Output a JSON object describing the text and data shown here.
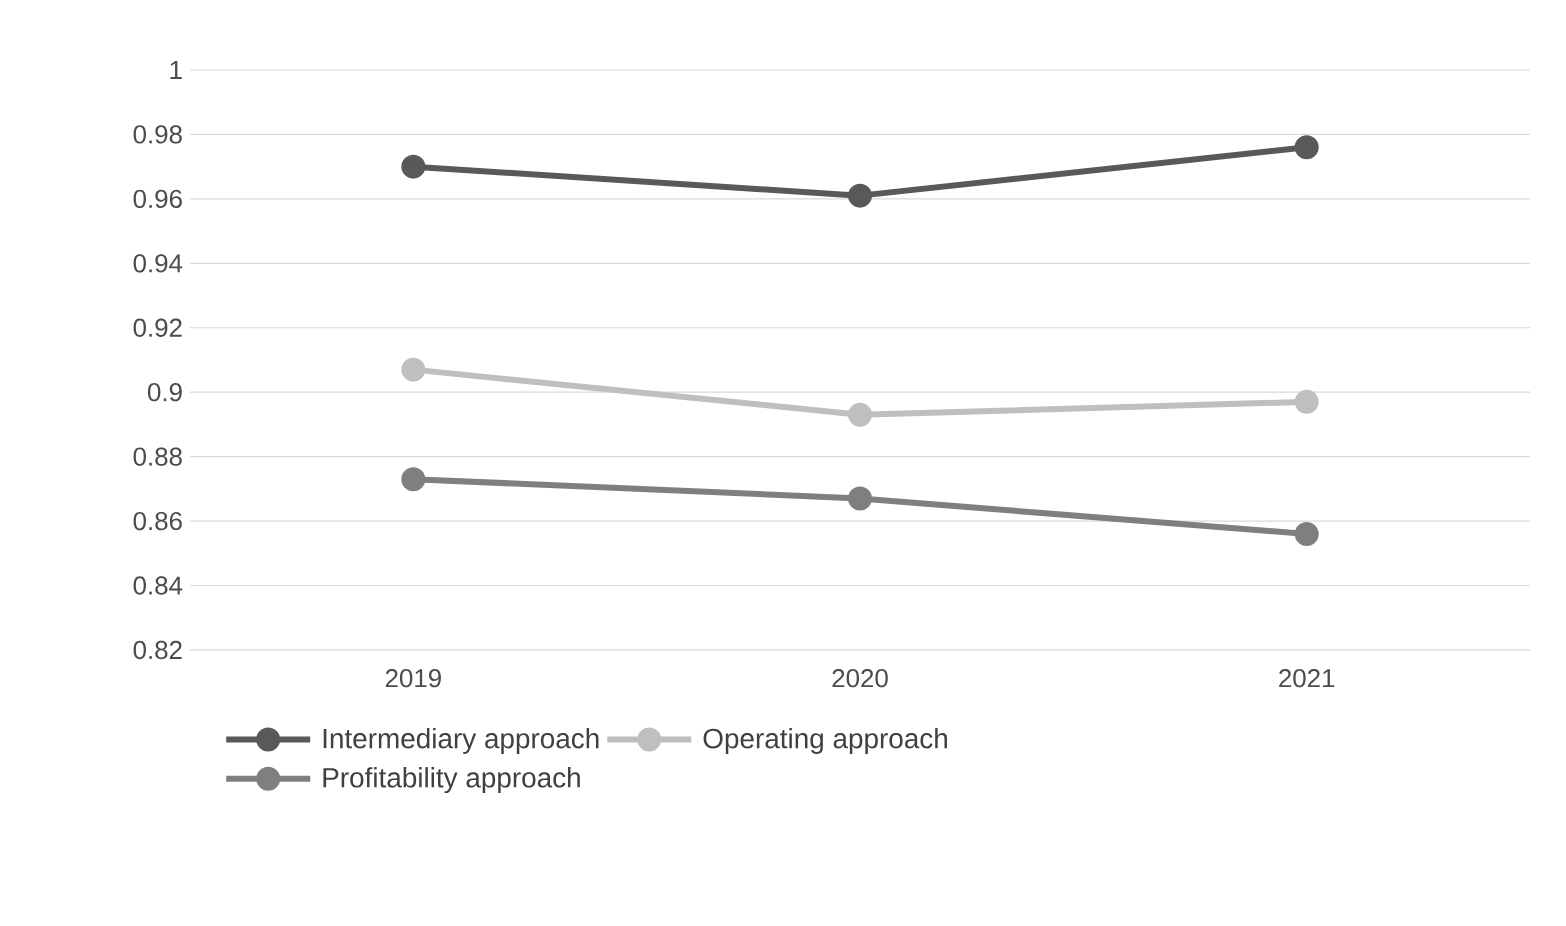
{
  "chart_data": {
    "type": "line",
    "categories": [
      "2019",
      "2020",
      "2021"
    ],
    "series": [
      {
        "name": "Intermediary approach",
        "color": "#595959",
        "values": [
          0.97,
          0.961,
          0.976
        ]
      },
      {
        "name": "Operating approach",
        "color": "#bfbfbf",
        "values": [
          0.907,
          0.893,
          0.897
        ]
      },
      {
        "name": "Profitability approach",
        "color": "#7f7f7f",
        "values": [
          0.873,
          0.867,
          0.856
        ]
      }
    ],
    "ylim": [
      0.82,
      1
    ],
    "yticks": [
      0.82,
      0.84,
      0.86,
      0.88,
      0.9,
      0.92,
      0.94,
      0.96,
      0.98,
      1
    ],
    "grid": "y",
    "legend": "bottom",
    "marker": "circle",
    "line_style": "solid"
  }
}
